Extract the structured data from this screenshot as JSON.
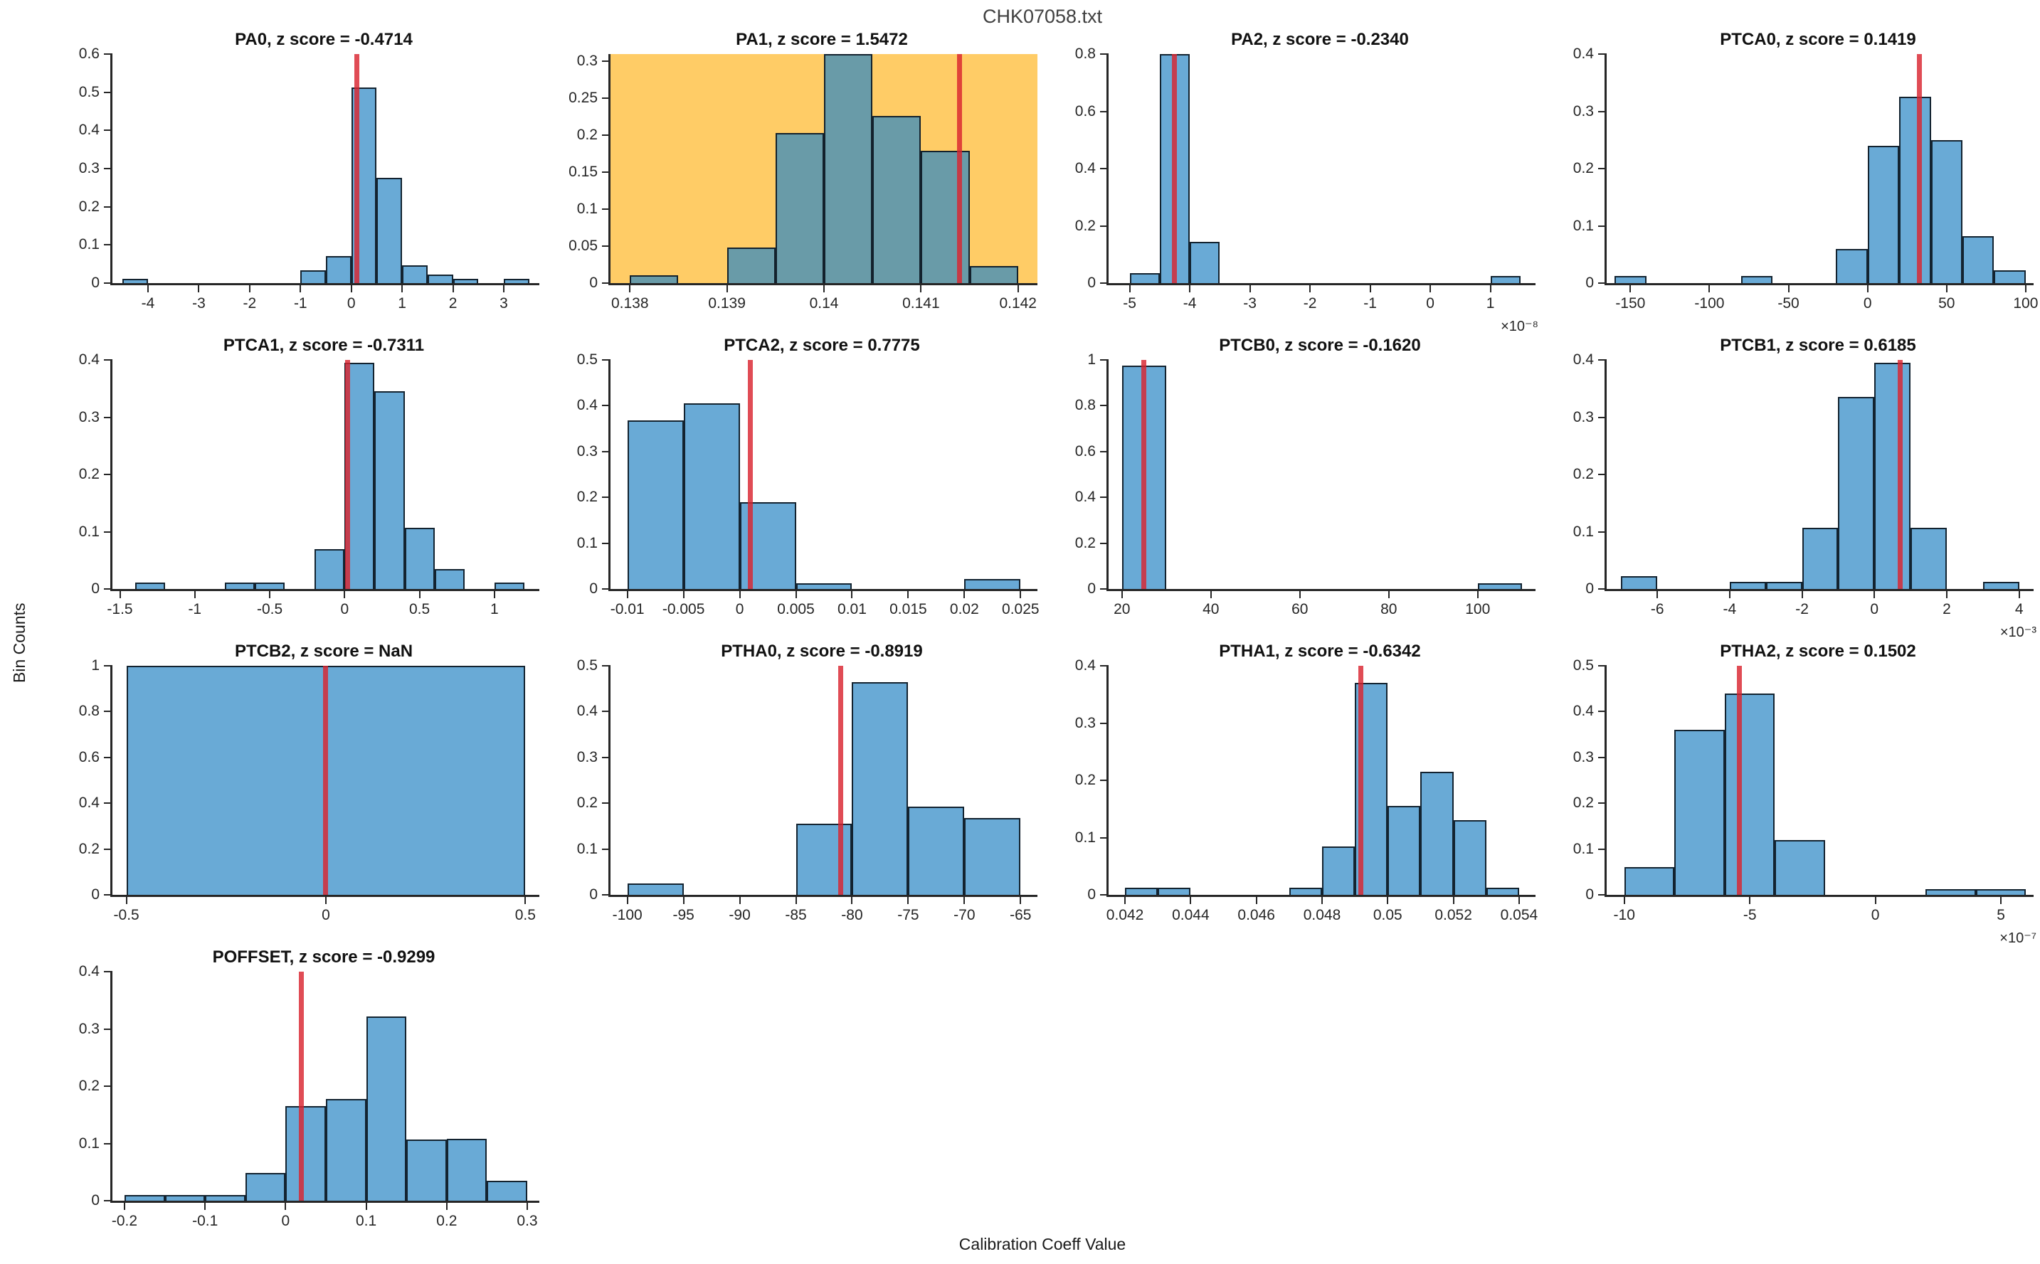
{
  "figure": {
    "title": "CHK07058.txt",
    "xlabel": "Calibration Coeff Value",
    "ylabel": "Bin Counts"
  },
  "colors": {
    "bar_fill": "rgba(41,134,196,0.7)",
    "bar_edge": "rgba(10,20,30,0.9)",
    "marker": "rgba(217,37,48,0.82)",
    "highlight_background": "#ffcc66",
    "axis": "#262626"
  },
  "chart_data": [
    {
      "name": "PA0",
      "type": "histogram",
      "row": 0,
      "col": 0,
      "title": "PA0, z score = -0.4714",
      "z_score": "-0.4714",
      "xlim": [
        -4.7,
        3.7
      ],
      "ylim": [
        0,
        0.6
      ],
      "yticks": [
        [
          0,
          "0"
        ],
        [
          0.1,
          "0.1"
        ],
        [
          0.2,
          "0.2"
        ],
        [
          0.3,
          "0.3"
        ],
        [
          0.4,
          "0.4"
        ],
        [
          0.5,
          "0.5"
        ],
        [
          0.6,
          "0.6"
        ]
      ],
      "xticks": [
        [
          -4,
          "-4"
        ],
        [
          -3,
          "-3"
        ],
        [
          -2,
          "-2"
        ],
        [
          -1,
          "-1"
        ],
        [
          0,
          "0"
        ],
        [
          1,
          "1"
        ],
        [
          2,
          "2"
        ],
        [
          3,
          "3"
        ]
      ],
      "bars": [
        [
          -4.5,
          -4,
          0.011
        ],
        [
          -1,
          -0.5,
          0.034
        ],
        [
          -0.5,
          0,
          0.07
        ],
        [
          0,
          0.5,
          0.512
        ],
        [
          0.5,
          1,
          0.276
        ],
        [
          1,
          1.5,
          0.047
        ],
        [
          1.5,
          2,
          0.022
        ],
        [
          2,
          2.5,
          0.011
        ],
        [
          3,
          3.5,
          0.011
        ]
      ],
      "marker_x": 0.12,
      "highlight": false,
      "x_exponent": ""
    },
    {
      "name": "PA1",
      "type": "histogram",
      "row": 0,
      "col": 1,
      "title": "PA1, z score = 1.5472",
      "z_score": "1.5472",
      "xlim": [
        0.1378,
        0.1422
      ],
      "ylim": [
        0,
        0.31
      ],
      "yticks": [
        [
          0,
          "0"
        ],
        [
          0.05,
          "0.05"
        ],
        [
          0.1,
          "0.1"
        ],
        [
          0.15,
          "0.15"
        ],
        [
          0.2,
          "0.2"
        ],
        [
          0.25,
          "0.25"
        ],
        [
          0.3,
          "0.3"
        ]
      ],
      "xticks": [
        [
          0.138,
          "0.138"
        ],
        [
          0.139,
          "0.139"
        ],
        [
          0.14,
          "0.14"
        ],
        [
          0.141,
          "0.141"
        ],
        [
          0.142,
          "0.142"
        ]
      ],
      "bars": [
        [
          0.138,
          0.1385,
          0.011
        ],
        [
          0.139,
          0.1395,
          0.048
        ],
        [
          0.1395,
          0.14,
          0.203
        ],
        [
          0.14,
          0.1405,
          0.31
        ],
        [
          0.1405,
          0.141,
          0.226
        ],
        [
          0.141,
          0.1415,
          0.179
        ],
        [
          0.1415,
          0.142,
          0.023
        ]
      ],
      "marker_x": 0.1414,
      "highlight": true,
      "x_exponent": ""
    },
    {
      "name": "PA2",
      "type": "histogram",
      "row": 0,
      "col": 2,
      "title": "PA2, z score = -0.2340",
      "z_score": "-0.2340",
      "xlim": [
        -5.35,
        1.75
      ],
      "ylim": [
        0,
        0.8
      ],
      "yticks": [
        [
          0,
          "0"
        ],
        [
          0.2,
          "0.2"
        ],
        [
          0.4,
          "0.4"
        ],
        [
          0.6,
          "0.6"
        ],
        [
          0.8,
          "0.8"
        ]
      ],
      "xticks": [
        [
          -5,
          "-5"
        ],
        [
          -4,
          "-4"
        ],
        [
          -3,
          "-3"
        ],
        [
          -2,
          "-2"
        ],
        [
          -1,
          "-1"
        ],
        [
          0,
          "0"
        ],
        [
          1,
          "1"
        ]
      ],
      "bars": [
        [
          -5,
          -4.5,
          0.035
        ],
        [
          -4.5,
          -4,
          0.8
        ],
        [
          -4,
          -3.5,
          0.145
        ],
        [
          1,
          1.5,
          0.025
        ]
      ],
      "marker_x": -4.25,
      "highlight": false,
      "x_exponent": "×10⁻⁸"
    },
    {
      "name": "PTCA0",
      "type": "histogram",
      "row": 0,
      "col": 3,
      "title": "PTCA0, z score = 0.1419",
      "z_score": "0.1419",
      "xlim": [
        -165,
        105
      ],
      "ylim": [
        0,
        0.4
      ],
      "yticks": [
        [
          0,
          "0"
        ],
        [
          0.1,
          "0.1"
        ],
        [
          0.2,
          "0.2"
        ],
        [
          0.3,
          "0.3"
        ],
        [
          0.4,
          "0.4"
        ]
      ],
      "xticks": [
        [
          -150,
          "-150"
        ],
        [
          -100,
          "-100"
        ],
        [
          -50,
          "-50"
        ],
        [
          0,
          "0"
        ],
        [
          50,
          "50"
        ],
        [
          100,
          "100"
        ]
      ],
      "bars": [
        [
          -160,
          -140,
          0.012
        ],
        [
          -80,
          -60,
          0.012
        ],
        [
          -20,
          0,
          0.06
        ],
        [
          0,
          20,
          0.24
        ],
        [
          20,
          40,
          0.325
        ],
        [
          40,
          60,
          0.25
        ],
        [
          60,
          80,
          0.082
        ],
        [
          80,
          100,
          0.022
        ]
      ],
      "marker_x": 33,
      "highlight": false,
      "x_exponent": ""
    },
    {
      "name": "PTCA1",
      "type": "histogram",
      "row": 1,
      "col": 0,
      "title": "PTCA1, z score = -0.7311",
      "z_score": "-0.7311",
      "xlim": [
        -1.55,
        1.3
      ],
      "ylim": [
        0,
        0.4
      ],
      "yticks": [
        [
          0,
          "0"
        ],
        [
          0.1,
          "0.1"
        ],
        [
          0.2,
          "0.2"
        ],
        [
          0.3,
          "0.3"
        ],
        [
          0.4,
          "0.4"
        ]
      ],
      "xticks": [
        [
          -1.5,
          "-1.5"
        ],
        [
          -1,
          "-1"
        ],
        [
          -0.5,
          "-0.5"
        ],
        [
          0,
          "0"
        ],
        [
          0.5,
          "0.5"
        ],
        [
          1,
          "1"
        ]
      ],
      "bars": [
        [
          -1.4,
          -1.2,
          0.011
        ],
        [
          -0.8,
          -0.6,
          0.011
        ],
        [
          -0.6,
          -0.4,
          0.011
        ],
        [
          -0.2,
          0,
          0.07
        ],
        [
          0,
          0.2,
          0.395
        ],
        [
          0.2,
          0.4,
          0.345
        ],
        [
          0.4,
          0.6,
          0.107
        ],
        [
          0.6,
          0.8,
          0.035
        ],
        [
          1,
          1.2,
          0.011
        ]
      ],
      "marker_x": 0.02,
      "highlight": false,
      "x_exponent": ""
    },
    {
      "name": "PTCA2",
      "type": "histogram",
      "row": 1,
      "col": 1,
      "title": "PTCA2, z score = 0.7775",
      "z_score": "0.7775",
      "xlim": [
        -0.0115,
        0.0265
      ],
      "ylim": [
        0,
        0.5
      ],
      "yticks": [
        [
          0,
          "0"
        ],
        [
          0.1,
          "0.1"
        ],
        [
          0.2,
          "0.2"
        ],
        [
          0.3,
          "0.3"
        ],
        [
          0.4,
          "0.4"
        ],
        [
          0.5,
          "0.5"
        ]
      ],
      "xticks": [
        [
          -0.01,
          "-0.01"
        ],
        [
          -0.005,
          "-0.005"
        ],
        [
          0,
          "0"
        ],
        [
          0.005,
          "0.005"
        ],
        [
          0.01,
          "0.01"
        ],
        [
          0.015,
          "0.015"
        ],
        [
          0.02,
          "0.02"
        ],
        [
          0.025,
          "0.025"
        ]
      ],
      "bars": [
        [
          -0.01,
          -0.005,
          0.368
        ],
        [
          -0.005,
          0,
          0.405
        ],
        [
          0,
          0.005,
          0.19
        ],
        [
          0.005,
          0.01,
          0.012
        ],
        [
          0.02,
          0.025,
          0.022
        ]
      ],
      "marker_x": 0.001,
      "highlight": false,
      "x_exponent": ""
    },
    {
      "name": "PTCB0",
      "type": "histogram",
      "row": 1,
      "col": 2,
      "title": "PTCB0, z score = -0.1620",
      "z_score": "-0.1620",
      "xlim": [
        17,
        113
      ],
      "ylim": [
        0,
        1
      ],
      "yticks": [
        [
          0,
          "0"
        ],
        [
          0.2,
          "0.2"
        ],
        [
          0.4,
          "0.4"
        ],
        [
          0.6,
          "0.6"
        ],
        [
          0.8,
          "0.8"
        ],
        [
          1,
          "1"
        ]
      ],
      "xticks": [
        [
          20,
          "20"
        ],
        [
          40,
          "40"
        ],
        [
          60,
          "60"
        ],
        [
          80,
          "80"
        ],
        [
          100,
          "100"
        ]
      ],
      "bars": [
        [
          20,
          30,
          0.975
        ],
        [
          100,
          110,
          0.025
        ]
      ],
      "marker_x": 25,
      "highlight": false,
      "x_exponent": ""
    },
    {
      "name": "PTCB1",
      "type": "histogram",
      "row": 1,
      "col": 3,
      "title": "PTCB1, z score = 0.6185",
      "z_score": "0.6185",
      "xlim": [
        -7.4,
        4.4
      ],
      "ylim": [
        0,
        0.4
      ],
      "yticks": [
        [
          0,
          "0"
        ],
        [
          0.1,
          "0.1"
        ],
        [
          0.2,
          "0.2"
        ],
        [
          0.3,
          "0.3"
        ],
        [
          0.4,
          "0.4"
        ]
      ],
      "xticks": [
        [
          -6,
          "-6"
        ],
        [
          -4,
          "-4"
        ],
        [
          -2,
          "-2"
        ],
        [
          0,
          "0"
        ],
        [
          2,
          "2"
        ],
        [
          4,
          "4"
        ]
      ],
      "bars": [
        [
          -7,
          -6,
          0.023
        ],
        [
          -4,
          -3,
          0.012
        ],
        [
          -3,
          -2,
          0.012
        ],
        [
          -2,
          -1,
          0.107
        ],
        [
          -1,
          0,
          0.335
        ],
        [
          0,
          1,
          0.395
        ],
        [
          1,
          2,
          0.107
        ],
        [
          3,
          4,
          0.012
        ]
      ],
      "marker_x": 0.72,
      "highlight": false,
      "x_exponent": "×10⁻³"
    },
    {
      "name": "PTCB2",
      "type": "histogram",
      "row": 2,
      "col": 0,
      "title": "PTCB2, z score = NaN",
      "z_score": "NaN",
      "xlim": [
        -0.535,
        0.535
      ],
      "ylim": [
        0,
        1
      ],
      "yticks": [
        [
          0,
          "0"
        ],
        [
          0.2,
          "0.2"
        ],
        [
          0.4,
          "0.4"
        ],
        [
          0.6,
          "0.6"
        ],
        [
          0.8,
          "0.8"
        ],
        [
          1,
          "1"
        ]
      ],
      "xticks": [
        [
          -0.5,
          "-0.5"
        ],
        [
          0,
          "0"
        ],
        [
          0.5,
          "0.5"
        ]
      ],
      "bars": [
        [
          -0.5,
          0.5,
          1
        ]
      ],
      "marker_x": 0,
      "highlight": false,
      "x_exponent": ""
    },
    {
      "name": "PTHA0",
      "type": "histogram",
      "row": 2,
      "col": 1,
      "title": "PTHA0, z score = -0.8919",
      "z_score": "-0.8919",
      "xlim": [
        -101.5,
        -63.5
      ],
      "ylim": [
        0,
        0.5
      ],
      "yticks": [
        [
          0,
          "0"
        ],
        [
          0.1,
          "0.1"
        ],
        [
          0.2,
          "0.2"
        ],
        [
          0.3,
          "0.3"
        ],
        [
          0.4,
          "0.4"
        ],
        [
          0.5,
          "0.5"
        ]
      ],
      "xticks": [
        [
          -100,
          "-100"
        ],
        [
          -95,
          "-95"
        ],
        [
          -90,
          "-90"
        ],
        [
          -85,
          "-85"
        ],
        [
          -80,
          "-80"
        ],
        [
          -75,
          "-75"
        ],
        [
          -70,
          "-70"
        ],
        [
          -65,
          "-65"
        ]
      ],
      "bars": [
        [
          -100,
          -95,
          0.025
        ],
        [
          -85,
          -80,
          0.156
        ],
        [
          -80,
          -75,
          0.465
        ],
        [
          -75,
          -70,
          0.192
        ],
        [
          -70,
          -65,
          0.168
        ]
      ],
      "marker_x": -81,
      "highlight": false,
      "x_exponent": ""
    },
    {
      "name": "PTHA1",
      "type": "histogram",
      "row": 2,
      "col": 2,
      "title": "PTHA1, z score = -0.6342",
      "z_score": "-0.6342",
      "xlim": [
        0.0415,
        0.0545
      ],
      "ylim": [
        0,
        0.4
      ],
      "yticks": [
        [
          0,
          "0"
        ],
        [
          0.1,
          "0.1"
        ],
        [
          0.2,
          "0.2"
        ],
        [
          0.3,
          "0.3"
        ],
        [
          0.4,
          "0.4"
        ]
      ],
      "xticks": [
        [
          0.042,
          "0.042"
        ],
        [
          0.044,
          "0.044"
        ],
        [
          0.046,
          "0.046"
        ],
        [
          0.048,
          "0.048"
        ],
        [
          0.05,
          "0.05"
        ],
        [
          0.052,
          "0.052"
        ],
        [
          0.054,
          "0.054"
        ]
      ],
      "bars": [
        [
          0.042,
          0.043,
          0.012
        ],
        [
          0.043,
          0.044,
          0.012
        ],
        [
          0.047,
          0.048,
          0.012
        ],
        [
          0.048,
          0.049,
          0.085
        ],
        [
          0.049,
          0.05,
          0.37
        ],
        [
          0.05,
          0.051,
          0.155
        ],
        [
          0.051,
          0.052,
          0.215
        ],
        [
          0.052,
          0.053,
          0.13
        ],
        [
          0.053,
          0.054,
          0.012
        ]
      ],
      "marker_x": 0.0492,
      "highlight": false,
      "x_exponent": ""
    },
    {
      "name": "PTHA2",
      "type": "histogram",
      "row": 2,
      "col": 3,
      "title": "PTHA2, z score = 0.1502",
      "z_score": "0.1502",
      "xlim": [
        -10.7,
        6.3
      ],
      "ylim": [
        0,
        0.5
      ],
      "yticks": [
        [
          0,
          "0"
        ],
        [
          0.1,
          "0.1"
        ],
        [
          0.2,
          "0.2"
        ],
        [
          0.3,
          "0.3"
        ],
        [
          0.4,
          "0.4"
        ],
        [
          0.5,
          "0.5"
        ]
      ],
      "xticks": [
        [
          -10,
          "-10"
        ],
        [
          -5,
          "-5"
        ],
        [
          0,
          "0"
        ],
        [
          5,
          "5"
        ]
      ],
      "bars": [
        [
          -10,
          -8,
          0.06
        ],
        [
          -8,
          -6,
          0.36
        ],
        [
          -6,
          -4,
          0.44
        ],
        [
          -4,
          -2,
          0.12
        ],
        [
          2,
          4,
          0.012
        ],
        [
          4,
          6,
          0.012
        ]
      ],
      "marker_x": -5.4,
      "highlight": false,
      "x_exponent": "×10⁻⁷"
    },
    {
      "name": "POFFSET",
      "type": "histogram",
      "row": 3,
      "col": 0,
      "title": "POFFSET, z score = -0.9299",
      "z_score": "-0.9299",
      "xlim": [
        -0.215,
        0.315
      ],
      "ylim": [
        0,
        0.4
      ],
      "yticks": [
        [
          0,
          "0"
        ],
        [
          0.1,
          "0.1"
        ],
        [
          0.2,
          "0.2"
        ],
        [
          0.3,
          "0.3"
        ],
        [
          0.4,
          "0.4"
        ]
      ],
      "xticks": [
        [
          -0.2,
          "-0.2"
        ],
        [
          -0.1,
          "-0.1"
        ],
        [
          0,
          "0"
        ],
        [
          0.1,
          "0.1"
        ],
        [
          0.2,
          "0.2"
        ],
        [
          0.3,
          "0.3"
        ]
      ],
      "bars": [
        [
          -0.2,
          -0.15,
          0.01
        ],
        [
          -0.15,
          -0.1,
          0.01
        ],
        [
          -0.1,
          -0.05,
          0.01
        ],
        [
          -0.05,
          0,
          0.048
        ],
        [
          0,
          0.05,
          0.165
        ],
        [
          0.05,
          0.1,
          0.178
        ],
        [
          0.1,
          0.15,
          0.322
        ],
        [
          0.15,
          0.2,
          0.107
        ],
        [
          0.2,
          0.25,
          0.108
        ],
        [
          0.25,
          0.3,
          0.035
        ]
      ],
      "marker_x": 0.02,
      "highlight": false,
      "x_exponent": ""
    }
  ]
}
